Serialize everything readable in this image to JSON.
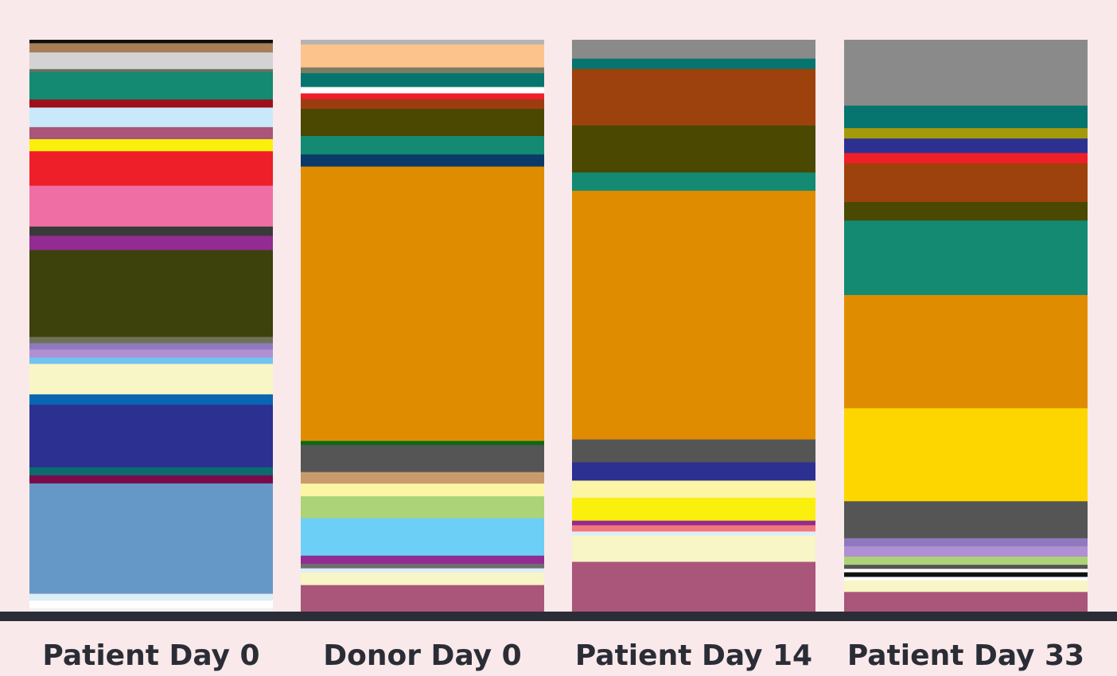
{
  "chart_data": {
    "type": "bar",
    "stacked": true,
    "normalized": true,
    "title": "",
    "xlabel": "",
    "ylabel": "",
    "ylim": [
      0,
      1
    ],
    "grid": false,
    "legend": "none",
    "axis_color": "#2b2d36",
    "background": "#f9e9ea",
    "categories": [
      "Patient Day 0",
      "Donor Day 0",
      "Patient Day 14",
      "Patient Day 33"
    ],
    "bars": [
      {
        "category": "Patient Day 0",
        "segments": [
          [
            "#0e0e0e",
            0.006
          ],
          [
            "#a87e58",
            0.016
          ],
          [
            "#d3d3d3",
            0.029
          ],
          [
            "#6c7260",
            0.005
          ],
          [
            "#138a71",
            0.048
          ],
          [
            "#9f0f19",
            0.014
          ],
          [
            "#c9e9fa",
            0.034
          ],
          [
            "#a9567a",
            0.021
          ],
          [
            "#fbf00d",
            0.021
          ],
          [
            "#ef1f2a",
            0.06
          ],
          [
            "#ef6fa4",
            0.071
          ],
          [
            "#383b38",
            0.016
          ],
          [
            "#922b92",
            0.025
          ],
          [
            "#3d410c",
            0.151
          ],
          [
            "#6e7154",
            0.011
          ],
          [
            "#8f7ac0",
            0.011
          ],
          [
            "#b090d3",
            0.014
          ],
          [
            "#6fc4f1",
            0.011
          ],
          [
            "#f8f5c6",
            0.053
          ],
          [
            "#0866b2",
            0.018
          ],
          [
            "#2c3191",
            0.109
          ],
          [
            "#0b6c6e",
            0.014
          ],
          [
            "#7a0a4b",
            0.014
          ],
          [
            "#6698c7",
            0.192
          ],
          [
            "#dceef9",
            0.012
          ],
          [
            "#ffffff",
            0.013
          ],
          [
            "#f1f1f1",
            0.006
          ]
        ]
      },
      {
        "category": "Donor Day 0",
        "segments": [
          [
            "#b3b3b3",
            0.008
          ],
          [
            "#fdc38c",
            0.04
          ],
          [
            "#7a7c64",
            0.01
          ],
          [
            "#07756f",
            0.024
          ],
          [
            "#ffffff",
            0.011
          ],
          [
            "#ef1f2a",
            0.01
          ],
          [
            "#9d3c10",
            0.017
          ],
          [
            "#4a4801",
            0.047
          ],
          [
            "#138a71",
            0.032
          ],
          [
            "#0b3a66",
            0.021
          ],
          [
            "#e08c00",
            0.476
          ],
          [
            "#0a6a15",
            0.007
          ],
          [
            "#555555",
            0.047
          ],
          [
            "#c89b6c",
            0.02
          ],
          [
            "#fdf5a6",
            0.022
          ],
          [
            "#acd377",
            0.038
          ],
          [
            "#6ccff6",
            0.065
          ],
          [
            "#922b92",
            0.014
          ],
          [
            "#6e6e6e",
            0.008
          ],
          [
            "#dceef9",
            0.007
          ],
          [
            "#f8f5c6",
            0.022
          ],
          [
            "#a9567a",
            0.046
          ]
        ]
      },
      {
        "category": "Patient Day 14",
        "segments": [
          [
            "#8a8a8a",
            0.033
          ],
          [
            "#07756f",
            0.018
          ],
          [
            "#9d420c",
            0.099
          ],
          [
            "#4a4801",
            0.082
          ],
          [
            "#138a71",
            0.032
          ],
          [
            "#e08c00",
            0.435
          ],
          [
            "#555555",
            0.04
          ],
          [
            "#2c3191",
            0.032
          ],
          [
            "#fdf5a6",
            0.03
          ],
          [
            "#fbf00d",
            0.04
          ],
          [
            "#922b92",
            0.008
          ],
          [
            "#f2777c",
            0.011
          ],
          [
            "#dceef9",
            0.007
          ],
          [
            "#f8f5c6",
            0.046
          ],
          [
            "#a9567a",
            0.087
          ]
        ]
      },
      {
        "category": "Patient Day 33",
        "segments": [
          [
            "#8a8a8a",
            0.114
          ],
          [
            "#07756f",
            0.039
          ],
          [
            "#a49a09",
            0.018
          ],
          [
            "#2c3191",
            0.025
          ],
          [
            "#ef1f2a",
            0.018
          ],
          [
            "#9d420c",
            0.067
          ],
          [
            "#4a4801",
            0.032
          ],
          [
            "#138a71",
            0.129
          ],
          [
            "#e08c00",
            0.196
          ],
          [
            "#fdd600",
            0.161
          ],
          [
            "#555555",
            0.064
          ],
          [
            "#8f7ac0",
            0.014
          ],
          [
            "#b090d3",
            0.018
          ],
          [
            "#acd377",
            0.014
          ],
          [
            "#555555",
            0.007
          ],
          [
            "#ffffff",
            0.006
          ],
          [
            "#111111",
            0.008
          ],
          [
            "#ffffff",
            0.006
          ],
          [
            "#f8f5c6",
            0.02
          ],
          [
            "#a9567a",
            0.034
          ]
        ]
      }
    ]
  }
}
